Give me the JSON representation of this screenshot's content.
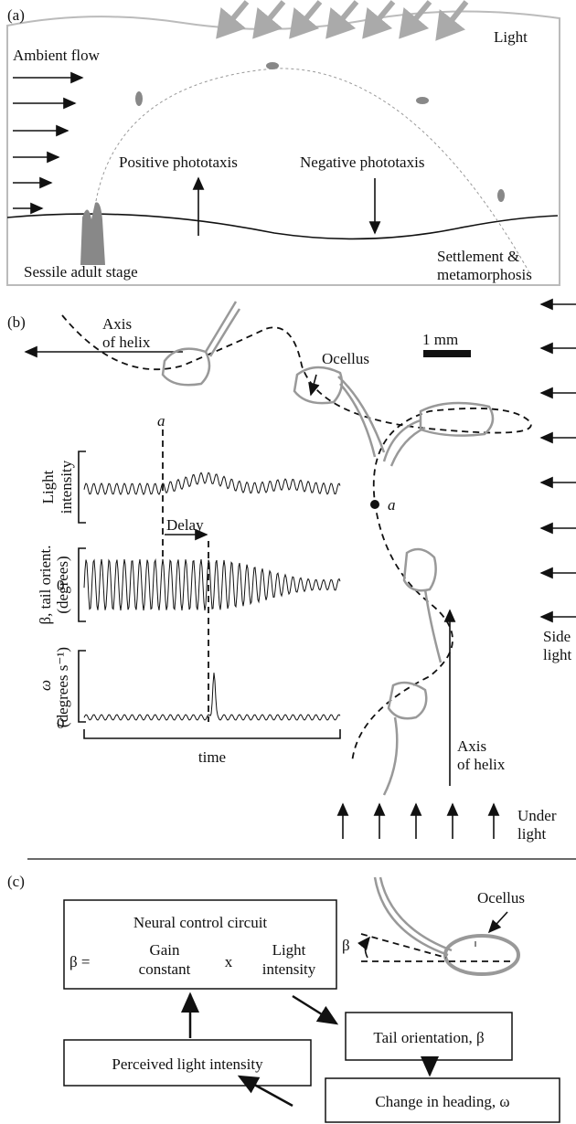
{
  "panel_a": {
    "label": "(a)",
    "ambient_flow": "Ambient flow",
    "light": "Light",
    "positive": "Positive phototaxis",
    "negative": "Negative phototaxis",
    "sessile": "Sessile adult stage",
    "settlement": [
      "Settlement &",
      "metamorphosis"
    ]
  },
  "panel_b": {
    "label": "(b)",
    "axis_top": [
      "Axis",
      "of helix"
    ],
    "scale": "1 mm",
    "ocellus": "Ocellus",
    "point_a": "a",
    "trace_a": "a",
    "light_intensity": [
      "Light",
      "intensity"
    ],
    "delay": "Delay",
    "beta": [
      "β, tail orient.",
      "(degrees)"
    ],
    "beta_zero": "0",
    "omega": [
      "ω",
      "(degrees s⁻¹)"
    ],
    "omega_zero": "0",
    "time": "time",
    "side_light": [
      "Side",
      "light"
    ],
    "axis_bottom": [
      "Axis",
      "of helix"
    ],
    "under_light": [
      "Under",
      "light"
    ]
  },
  "panel_c": {
    "label": "(c)",
    "neural_title": "Neural control circuit",
    "beta_eq": "β =",
    "gain": [
      "Gain",
      "constant"
    ],
    "times": "x",
    "light": [
      "Light",
      "intensity"
    ],
    "ocellus": "Ocellus",
    "beta": "β",
    "tail": "Tail orientation, β",
    "perceived": "Perceived light intensity",
    "heading": "Change in heading, ω"
  }
}
